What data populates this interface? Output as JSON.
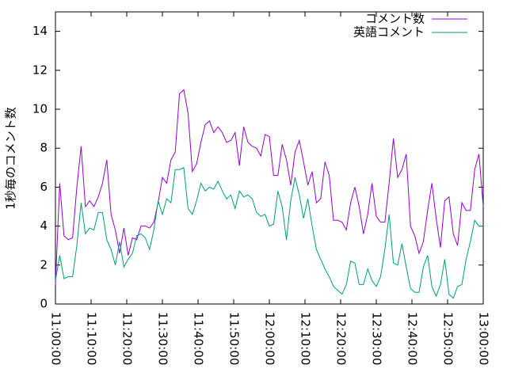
{
  "chart_data": {
    "type": "line",
    "ylabel": "1秒毎のコメント数",
    "xlim": [
      "11:00:00",
      "13:00:00"
    ],
    "xticks": [
      "11:00:00",
      "11:10:00",
      "11:20:00",
      "11:30:00",
      "11:40:00",
      "11:50:00",
      "12:00:00",
      "12:10:00",
      "12:20:00",
      "12:30:00",
      "12:40:00",
      "12:50:00",
      "13:00:00"
    ],
    "ylim": [
      0,
      15
    ],
    "yticks": [
      0,
      2,
      4,
      6,
      8,
      10,
      12,
      14
    ],
    "legend": "top-right",
    "x": [
      "11:00:00",
      "11:01:12",
      "11:02:24",
      "11:03:36",
      "11:04:48",
      "11:06:00",
      "11:07:12",
      "11:08:24",
      "11:09:36",
      "11:10:48",
      "11:12:00",
      "11:13:12",
      "11:14:24",
      "11:15:36",
      "11:16:48",
      "11:18:00",
      "11:19:12",
      "11:20:24",
      "11:21:36",
      "11:22:48",
      "11:24:00",
      "11:25:12",
      "11:26:24",
      "11:27:36",
      "11:28:48",
      "11:30:00",
      "11:31:12",
      "11:32:24",
      "11:33:36",
      "11:34:48",
      "11:36:00",
      "11:37:12",
      "11:38:24",
      "11:39:36",
      "11:40:48",
      "11:42:00",
      "11:43:12",
      "11:44:24",
      "11:45:36",
      "11:46:48",
      "11:48:00",
      "11:49:12",
      "11:50:24",
      "11:51:36",
      "11:52:48",
      "11:54:00",
      "11:55:12",
      "11:56:24",
      "11:57:36",
      "11:58:48",
      "12:00:00",
      "12:01:12",
      "12:02:24",
      "12:03:36",
      "12:04:48",
      "12:06:00",
      "12:07:12",
      "12:08:24",
      "12:09:36",
      "12:10:48",
      "12:12:00",
      "12:13:12",
      "12:14:24",
      "12:15:36",
      "12:16:48",
      "12:18:00",
      "12:19:12",
      "12:20:24",
      "12:21:36",
      "12:22:48",
      "12:24:00",
      "12:25:12",
      "12:26:24",
      "12:27:36",
      "12:28:48",
      "12:30:00",
      "12:31:12",
      "12:32:24",
      "12:33:36",
      "12:34:48",
      "12:36:00",
      "12:37:12",
      "12:38:24",
      "12:39:36",
      "12:40:48",
      "12:42:00",
      "12:43:12",
      "12:44:24",
      "12:45:36",
      "12:46:48",
      "12:48:00",
      "12:49:12",
      "12:50:24",
      "12:51:36",
      "12:52:48",
      "12:54:00",
      "12:55:12",
      "12:56:24",
      "12:57:36",
      "12:58:48",
      "13:00:00"
    ],
    "series": [
      {
        "name": "コメント数",
        "color": "#9400d3",
        "values": [
          1.0,
          6.2,
          3.5,
          3.3,
          3.4,
          6.0,
          8.1,
          5.0,
          5.3,
          5.0,
          5.5,
          6.2,
          7.4,
          4.6,
          3.8,
          2.6,
          3.9,
          2.5,
          3.4,
          3.3,
          4.0,
          4.0,
          3.9,
          4.2,
          5.2,
          6.5,
          6.2,
          7.4,
          7.8,
          10.8,
          11.0,
          9.8,
          6.8,
          7.2,
          8.3,
          9.2,
          9.4,
          8.8,
          9.1,
          8.8,
          8.3,
          8.4,
          8.8,
          7.1,
          9.1,
          8.3,
          8.1,
          8.0,
          7.6,
          8.7,
          8.6,
          6.6,
          6.6,
          8.2,
          7.4,
          6.1,
          7.8,
          8.4,
          7.3,
          6.1,
          6.8,
          5.2,
          5.4,
          7.3,
          6.6,
          4.3,
          4.3,
          4.2,
          3.8,
          5.2,
          6.0,
          5.0,
          3.6,
          4.6,
          6.2,
          4.5,
          4.2,
          4.2,
          6.2,
          8.5,
          6.5,
          6.9,
          7.7,
          4.0,
          3.5,
          2.6,
          3.2,
          4.8,
          6.2,
          4.4,
          2.9,
          5.3,
          5.5,
          3.6,
          3.0,
          5.2,
          4.8,
          4.8,
          6.9,
          7.7,
          5.0
        ]
      },
      {
        "name": "英語コメント",
        "color": "#009e73",
        "values": [
          1.2,
          2.5,
          1.3,
          1.4,
          1.4,
          3.0,
          5.2,
          3.6,
          3.9,
          3.8,
          4.7,
          4.7,
          3.3,
          2.8,
          2.0,
          3.2,
          1.9,
          2.3,
          2.6,
          3.5,
          3.6,
          3.4,
          2.8,
          3.8,
          5.3,
          4.6,
          5.4,
          5.2,
          6.9,
          6.9,
          7.0,
          4.9,
          4.6,
          5.3,
          6.2,
          5.8,
          6.0,
          5.9,
          6.3,
          5.8,
          5.4,
          5.6,
          4.9,
          5.8,
          5.5,
          5.6,
          5.4,
          4.7,
          4.5,
          4.6,
          4.0,
          4.1,
          5.8,
          5.0,
          3.3,
          5.3,
          6.5,
          5.6,
          4.4,
          5.4,
          4.0,
          2.8,
          2.3,
          1.8,
          1.4,
          0.9,
          0.7,
          0.5,
          1.0,
          2.2,
          2.1,
          1.0,
          1.0,
          1.8,
          1.2,
          0.9,
          1.4,
          2.8,
          4.6,
          2.1,
          2.0,
          3.1,
          1.9,
          0.8,
          0.6,
          0.6,
          1.9,
          2.5,
          0.9,
          0.4,
          1.0,
          2.3,
          0.5,
          0.3,
          0.9,
          1.0,
          2.3,
          3.2,
          4.3,
          4.0,
          4.0
        ]
      }
    ]
  }
}
